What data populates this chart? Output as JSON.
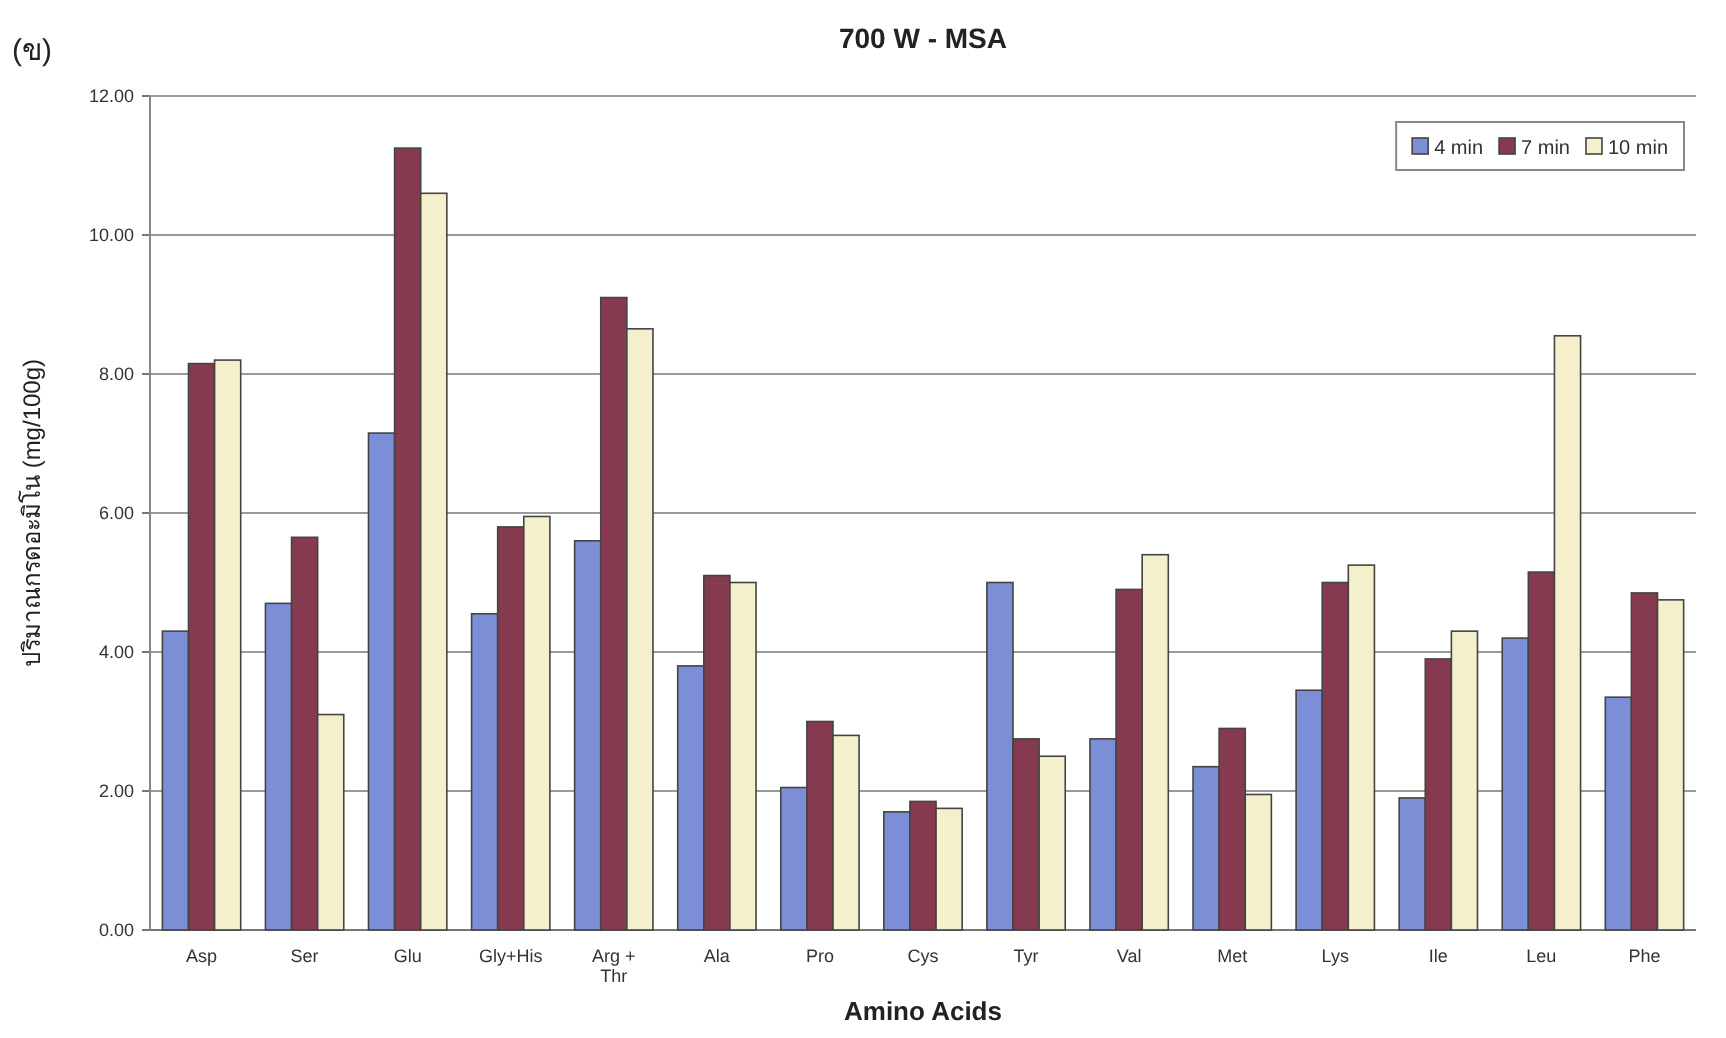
{
  "chart_data": {
    "type": "bar",
    "title": "700 W - MSA",
    "xlabel": "Amino Acids",
    "ylabel": "ปริมาณกรดอะมิโน (mg/100g)",
    "annotations": [
      "(ข)"
    ],
    "categories": [
      "Asp",
      "Ser",
      "Glu",
      "Gly+His",
      "Arg + Thr",
      "Ala",
      "Pro",
      "Cys",
      "Tyr",
      "Val",
      "Met",
      "Lys",
      "Ile",
      "Leu",
      "Phe"
    ],
    "series": [
      {
        "name": "4 min",
        "color": "#7b8ed6",
        "values": [
          4.3,
          4.7,
          7.15,
          4.55,
          5.6,
          3.8,
          2.05,
          1.7,
          5.0,
          2.75,
          2.35,
          3.45,
          1.9,
          4.2,
          3.35
        ]
      },
      {
        "name": "7 min",
        "color": "#863a50",
        "values": [
          8.15,
          5.65,
          11.25,
          5.8,
          9.1,
          5.1,
          3.0,
          1.85,
          2.75,
          4.9,
          2.9,
          5.0,
          3.9,
          5.15,
          4.85
        ]
      },
      {
        "name": "10 min",
        "color": "#f4f0cc",
        "values": [
          8.2,
          3.1,
          10.6,
          5.95,
          8.65,
          5.0,
          2.8,
          1.75,
          2.5,
          5.4,
          1.95,
          5.25,
          4.3,
          8.55,
          4.75
        ]
      }
    ],
    "ylim": [
      0,
      12
    ],
    "yticks": [
      {
        "value": 0,
        "label": "0.00"
      },
      {
        "value": 2,
        "label": "2.00"
      },
      {
        "value": 4,
        "label": "4.00"
      },
      {
        "value": 6,
        "label": "6.00"
      },
      {
        "value": 8,
        "label": "8.00"
      },
      {
        "value": 10,
        "label": "10.00"
      },
      {
        "value": 12,
        "label": "12.00"
      }
    ],
    "grid": "y",
    "legend": "top right"
  }
}
